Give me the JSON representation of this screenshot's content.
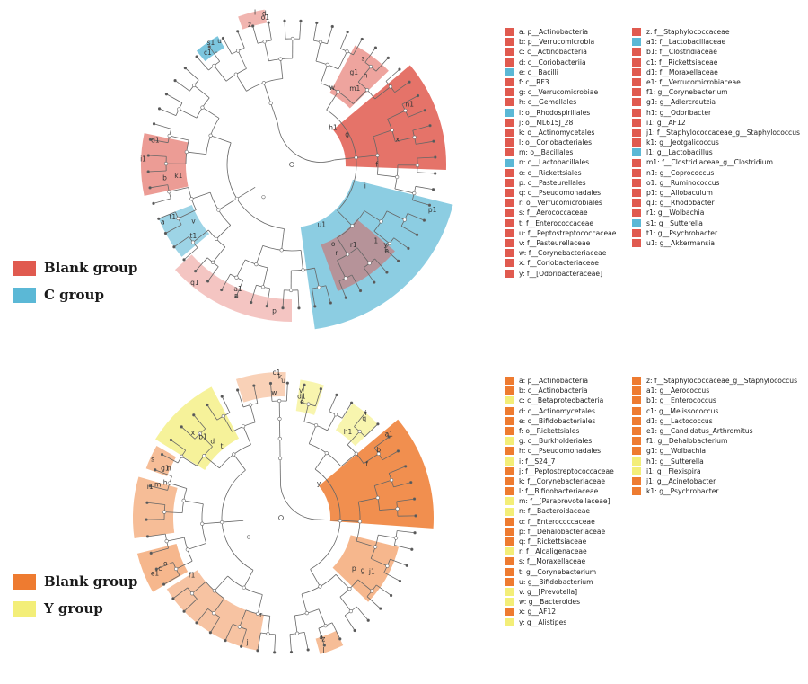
{
  "colors": {
    "blank_top": "#e05a4f",
    "c_group": "#5bb8d6",
    "blank_bottom": "#ee7b30",
    "y_group": "#f3ee78"
  },
  "top_panel": {
    "legend": [
      {
        "label": "Blank group",
        "color_key": "blank_top"
      },
      {
        "label": "C group",
        "color_key": "c_group"
      }
    ],
    "taxa": [
      {
        "id": "a",
        "name": "p__Actinobacteria",
        "group": "blank"
      },
      {
        "id": "b",
        "name": "p__Verrucomicrobia",
        "group": "blank"
      },
      {
        "id": "c",
        "name": "c__Actinobacteria",
        "group": "blank"
      },
      {
        "id": "d",
        "name": "c__Coriobacteriia",
        "group": "blank"
      },
      {
        "id": "e",
        "name": "c__Bacilli",
        "group": "C"
      },
      {
        "id": "f",
        "name": "c__RF3",
        "group": "blank"
      },
      {
        "id": "g",
        "name": "c__Verrucomicrobiae",
        "group": "blank"
      },
      {
        "id": "h",
        "name": "o__Gemellales",
        "group": "blank"
      },
      {
        "id": "i",
        "name": "o__Rhodospirillales",
        "group": "C"
      },
      {
        "id": "j",
        "name": "o__ML615J_28",
        "group": "blank"
      },
      {
        "id": "k",
        "name": "o__Actinomycetales",
        "group": "blank"
      },
      {
        "id": "l",
        "name": "o__Coriobacteriales",
        "group": "blank"
      },
      {
        "id": "m",
        "name": "o__Bacillales",
        "group": "blank"
      },
      {
        "id": "n",
        "name": "o__Lactobacillales",
        "group": "C"
      },
      {
        "id": "o",
        "name": "o__Rickettsiales",
        "group": "blank"
      },
      {
        "id": "p",
        "name": "o__Pasteurellales",
        "group": "blank"
      },
      {
        "id": "q",
        "name": "o__Pseudomonadales",
        "group": "blank"
      },
      {
        "id": "r",
        "name": "o__Verrucomicrobiales",
        "group": "blank"
      },
      {
        "id": "s",
        "name": "f__Aerococcaceae",
        "group": "blank"
      },
      {
        "id": "t",
        "name": "f__Enterococcaceae",
        "group": "blank"
      },
      {
        "id": "u",
        "name": "f__Peptostreptococcaceae",
        "group": "blank"
      },
      {
        "id": "v",
        "name": "f__Pasteurellaceae",
        "group": "blank"
      },
      {
        "id": "w",
        "name": "f__Corynebacteriaceae",
        "group": "blank"
      },
      {
        "id": "x",
        "name": "f__Coriobacteriaceae",
        "group": "blank"
      },
      {
        "id": "y",
        "name": "f__[Odoribacteraceae]",
        "group": "blank"
      },
      {
        "id": "z",
        "name": "f__Staphylococcaceae",
        "group": "blank"
      },
      {
        "id": "a1",
        "name": "f__Lactobacillaceae",
        "group": "C"
      },
      {
        "id": "b1",
        "name": "f__Clostridiaceae",
        "group": "blank"
      },
      {
        "id": "c1",
        "name": "f__Rickettsiaceae",
        "group": "blank"
      },
      {
        "id": "d1",
        "name": "f__Moraxellaceae",
        "group": "blank"
      },
      {
        "id": "e1",
        "name": "f__Verrucomicrobiaceae",
        "group": "blank"
      },
      {
        "id": "f1",
        "name": "g__Corynebacterium",
        "group": "blank"
      },
      {
        "id": "g1",
        "name": "g__Adlercreutzia",
        "group": "blank"
      },
      {
        "id": "h1",
        "name": "g__Odoribacter",
        "group": "blank"
      },
      {
        "id": "i1",
        "name": "g__AF12",
        "group": "blank"
      },
      {
        "id": "j1",
        "name": "f__Staphylococcaceae_g__Staphylococcus",
        "group": "blank"
      },
      {
        "id": "k1",
        "name": "g__Jeotgalicoccus",
        "group": "blank"
      },
      {
        "id": "l1",
        "name": "g__Lactobacillus",
        "group": "C"
      },
      {
        "id": "m1",
        "name": "f__Clostridiaceae_g__Clostridium",
        "group": "blank"
      },
      {
        "id": "n1",
        "name": "g__Coprococcus",
        "group": "blank"
      },
      {
        "id": "o1",
        "name": "g__Ruminococcus",
        "group": "blank"
      },
      {
        "id": "p1",
        "name": "g__Allobaculum",
        "group": "blank"
      },
      {
        "id": "q1",
        "name": "g__Rhodobacter",
        "group": "blank"
      },
      {
        "id": "r1",
        "name": "g__Wolbachia",
        "group": "blank"
      },
      {
        "id": "s1",
        "name": "g__Sutterella",
        "group": "C"
      },
      {
        "id": "t1",
        "name": "g__Psychrobacter",
        "group": "blank"
      },
      {
        "id": "u1",
        "name": "g__Akkermansia",
        "group": "blank"
      }
    ],
    "tree_labels": [
      "h1",
      "g1",
      "u1",
      "l1",
      "a1",
      "t1",
      "k1",
      "s1",
      "o1",
      "n1",
      "m1",
      "p1",
      "r1",
      "q1",
      "t1",
      "i1",
      "u",
      "z",
      "x",
      "w",
      "y",
      "o",
      "p",
      "v",
      "d1",
      "c1",
      "l",
      "f",
      "s",
      "r",
      "e",
      "n",
      "a",
      "b",
      "c",
      "d",
      "g",
      "h",
      "i"
    ]
  },
  "bottom_panel": {
    "legend": [
      {
        "label": "Blank group",
        "color_key": "blank_bottom"
      },
      {
        "label": "Y group",
        "color_key": "y_group"
      }
    ],
    "taxa": [
      {
        "id": "a",
        "name": "p__Actinobacteria",
        "group": "blank"
      },
      {
        "id": "b",
        "name": "c__Actinobacteria",
        "group": "blank"
      },
      {
        "id": "c",
        "name": "c__Betaproteobacteria",
        "group": "Y"
      },
      {
        "id": "d",
        "name": "o__Actinomycetales",
        "group": "blank"
      },
      {
        "id": "e",
        "name": "o__Bifidobacteriales",
        "group": "blank"
      },
      {
        "id": "f",
        "name": "o__Rickettsiales",
        "group": "blank"
      },
      {
        "id": "g",
        "name": "o__Burkholderiales",
        "group": "Y"
      },
      {
        "id": "h",
        "name": "o__Pseudomonadales",
        "group": "blank"
      },
      {
        "id": "i",
        "name": "f__S24_7",
        "group": "Y"
      },
      {
        "id": "j",
        "name": "f__Peptostreptococcaceae",
        "group": "blank"
      },
      {
        "id": "k",
        "name": "f__Corynebacteriaceae",
        "group": "blank"
      },
      {
        "id": "l",
        "name": "f__Bifidobacteriaceae",
        "group": "blank"
      },
      {
        "id": "m",
        "name": "f__[Paraprevotellaceae]",
        "group": "Y"
      },
      {
        "id": "n",
        "name": "f__Bacteroidaceae",
        "group": "Y"
      },
      {
        "id": "o",
        "name": "f__Enterococcaceae",
        "group": "blank"
      },
      {
        "id": "p",
        "name": "f__Dehalobacteriaceae",
        "group": "blank"
      },
      {
        "id": "q",
        "name": "f__Rickettsiaceae",
        "group": "blank"
      },
      {
        "id": "r",
        "name": "f__Alcaligenaceae",
        "group": "Y"
      },
      {
        "id": "s",
        "name": "f__Moraxellaceae",
        "group": "blank"
      },
      {
        "id": "t",
        "name": "g__Corynebacterium",
        "group": "blank"
      },
      {
        "id": "u",
        "name": "g__Bifidobacterium",
        "group": "blank"
      },
      {
        "id": "v",
        "name": "g__[Prevotella]",
        "group": "Y"
      },
      {
        "id": "w",
        "name": "g__Bacteroides",
        "group": "Y"
      },
      {
        "id": "x",
        "name": "g__AF12",
        "group": "blank"
      },
      {
        "id": "y",
        "name": "g__Alistipes",
        "group": "Y"
      },
      {
        "id": "z",
        "name": "f__Staphylococcaceae_g__Staphylococcus",
        "group": "blank"
      },
      {
        "id": "a1",
        "name": "g__Aerococcus",
        "group": "blank"
      },
      {
        "id": "b1",
        "name": "g__Enterococcus",
        "group": "blank"
      },
      {
        "id": "c1",
        "name": "g__Melissococcus",
        "group": "blank"
      },
      {
        "id": "d1",
        "name": "g__Lactococcus",
        "group": "blank"
      },
      {
        "id": "e1",
        "name": "g__Candidatus_Arthromitus",
        "group": "blank"
      },
      {
        "id": "f1",
        "name": "g__Dehalobacterium",
        "group": "blank"
      },
      {
        "id": "g1",
        "name": "g__Wolbachia",
        "group": "blank"
      },
      {
        "id": "h1",
        "name": "g__Sutterella",
        "group": "Y"
      },
      {
        "id": "i1",
        "name": "g__Flexispira",
        "group": "Y"
      },
      {
        "id": "j1",
        "name": "g__Acinetobacter",
        "group": "blank"
      },
      {
        "id": "k1",
        "name": "g__Psychrobacter",
        "group": "blank"
      }
    ],
    "tree_labels": [
      "y",
      "x",
      "w",
      "v",
      "h1",
      "i1",
      "g1",
      "j1",
      "f1",
      "e1",
      "z",
      "a1",
      "b1",
      "c1",
      "d1",
      "i",
      "m",
      "n",
      "g",
      "r",
      "c",
      "a",
      "b",
      "d",
      "k",
      "e",
      "q",
      "h",
      "s",
      "p",
      "j",
      "o",
      "l",
      "f",
      "t",
      "u"
    ]
  }
}
